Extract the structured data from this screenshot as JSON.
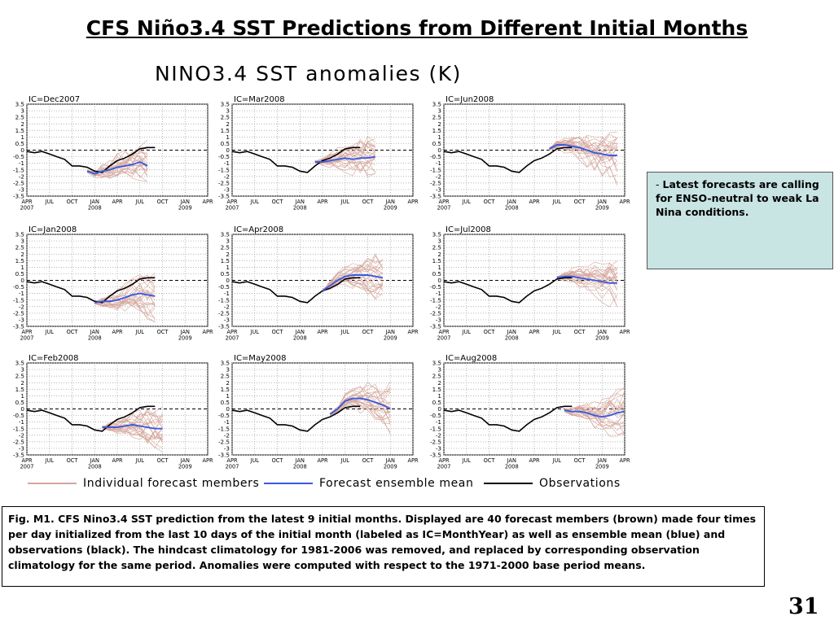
{
  "slide": {
    "title": "CFS Niño3.4 SST Predictions from Different Initial Months",
    "figure_title": "NINO3.4  SST  anomalies  (K)",
    "page_number": "31"
  },
  "notes": {
    "dash": "- ",
    "text": "Latest forecasts are calling for ENSO-neutral to weak La Nina conditions."
  },
  "caption": {
    "text": "Fig. M1. CFS Nino3.4 SST prediction from the latest 9 initial months. Displayed are 40 forecast members (brown) made four times per day initialized from the last 10 days of the initial month (labeled as IC=MonthYear) as well as ensemble mean (blue) and observations (black). The hindcast climatology for 1981-2006 was removed, and replaced by corresponding observation climatology for the same period. Anomalies were computed with respect to the 1971-2000 base period means."
  },
  "legend": {
    "members": "Individual forecast members",
    "mean": "Forecast ensemble mean",
    "obs": "Observations"
  },
  "colors": {
    "members": "#d4a49a",
    "mean": "#3a5ae0",
    "obs": "#000000",
    "notes_bg": "#c8e4e3"
  },
  "chart_data": {
    "type": "line",
    "ylim": [
      -3.5,
      3.5
    ],
    "yticks": [
      "3.5",
      "3",
      "2.5",
      "2",
      "1.5",
      "1",
      "0.5",
      "0",
      "-0.5",
      "-1",
      "-1.5",
      "-2",
      "-2.5",
      "-3",
      "-3.5"
    ],
    "xticks": [
      "APR",
      "JUL",
      "OCT",
      "JAN",
      "APR",
      "JUL",
      "OCT",
      "JAN",
      "APR"
    ],
    "xtick_years": [
      {
        "index": 0,
        "label": "2007"
      },
      {
        "index": 3,
        "label": "2008"
      },
      {
        "index": 7,
        "label": "2009"
      }
    ],
    "x_months": [
      "2007-04",
      "2007-05",
      "2007-06",
      "2007-07",
      "2007-08",
      "2007-09",
      "2007-10",
      "2007-11",
      "2007-12",
      "2008-01",
      "2008-02",
      "2008-03",
      "2008-04",
      "2008-05",
      "2008-06",
      "2008-07",
      "2008-08",
      "2008-09",
      "2008-10",
      "2008-11",
      "2008-12",
      "2009-01",
      "2009-02",
      "2009-03",
      "2009-04"
    ],
    "observations": [
      -0.1,
      -0.2,
      -0.1,
      -0.3,
      -0.5,
      -0.7,
      -1.2,
      -1.2,
      -1.3,
      -1.6,
      -1.7,
      -1.2,
      -0.8,
      -0.6,
      -0.3,
      0.1,
      0.2,
      0.2
    ],
    "panels": [
      {
        "label": "IC=Dec2007",
        "ensemble_mean_start": "2007-12",
        "ensemble_mean": [
          -1.6,
          -1.8,
          -1.6,
          -1.5,
          -1.3,
          -1.2,
          -1.1,
          -0.9,
          -1.2
        ]
      },
      {
        "label": "IC=Mar2008",
        "ensemble_mean_start": "2008-03",
        "ensemble_mean": [
          -0.9,
          -0.9,
          -0.8,
          -0.7,
          -0.6,
          -0.7,
          -0.6,
          -0.6,
          -0.5
        ]
      },
      {
        "label": "IC=Jun2008",
        "ensemble_mean_start": "2008-06",
        "ensemble_mean": [
          0.1,
          0.4,
          0.4,
          0.3,
          0.2,
          0.0,
          -0.2,
          -0.3,
          -0.4,
          -0.4
        ]
      },
      {
        "label": "IC=Jan2008",
        "ensemble_mean_start": "2008-01",
        "ensemble_mean": [
          -1.7,
          -1.6,
          -1.6,
          -1.5,
          -1.3,
          -1.1,
          -1.0,
          -1.1,
          -1.2
        ]
      },
      {
        "label": "IC=Apr2008",
        "ensemble_mean_start": "2008-04",
        "ensemble_mean": [
          -0.8,
          -0.4,
          0.0,
          0.3,
          0.4,
          0.4,
          0.4,
          0.3,
          0.2
        ]
      },
      {
        "label": "IC=Jul2008",
        "ensemble_mean_start": "2008-07",
        "ensemble_mean": [
          0.2,
          0.3,
          0.3,
          0.2,
          0.1,
          0.0,
          -0.1,
          -0.2,
          -0.2
        ]
      },
      {
        "label": "IC=Feb2008",
        "ensemble_mean_start": "2008-02",
        "ensemble_mean": [
          -1.4,
          -1.4,
          -1.4,
          -1.3,
          -1.2,
          -1.3,
          -1.4,
          -1.5,
          -1.5
        ]
      },
      {
        "label": "IC=May2008",
        "ensemble_mean_start": "2008-05",
        "ensemble_mean": [
          -0.4,
          0.0,
          0.6,
          0.8,
          0.8,
          0.7,
          0.5,
          0.3,
          0.0
        ]
      },
      {
        "label": "IC=Aug2008",
        "ensemble_mean_start": "2008-08",
        "ensemble_mean": [
          -0.1,
          -0.2,
          -0.2,
          -0.3,
          -0.5,
          -0.6,
          -0.5,
          -0.3,
          -0.2
        ]
      }
    ]
  }
}
